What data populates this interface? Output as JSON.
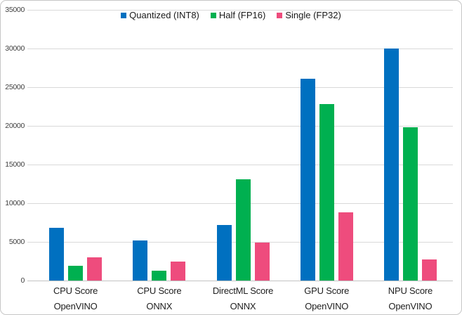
{
  "chart_data": {
    "type": "bar",
    "categories": [
      [
        "CPU Score",
        "OpenVINO"
      ],
      [
        "CPU Score",
        "ONNX"
      ],
      [
        "DirectML Score",
        "ONNX"
      ],
      [
        "GPU Score",
        "OpenVINO"
      ],
      [
        "NPU Score",
        "OpenVINO"
      ]
    ],
    "series": [
      {
        "name": "Quantized (INT8)",
        "color": "#0070C0",
        "values": [
          6800,
          5200,
          7200,
          26100,
          30000
        ]
      },
      {
        "name": "Half (FP16)",
        "color": "#00B050",
        "values": [
          1950,
          1300,
          13100,
          22800,
          19800
        ]
      },
      {
        "name": "Single (FP32)",
        "color": "#EE4C7D",
        "values": [
          3000,
          2500,
          4900,
          8800,
          2700
        ]
      }
    ],
    "title": "",
    "xlabel": "",
    "ylabel": "",
    "ylim": [
      0,
      35000
    ],
    "ytick_step": 5000,
    "yticks": [
      "0",
      "5000",
      "10000",
      "15000",
      "20000",
      "25000",
      "30000",
      "35000"
    ],
    "grid": true,
    "grid_color": "#d9d9d9",
    "legend_position": "top-center"
  }
}
